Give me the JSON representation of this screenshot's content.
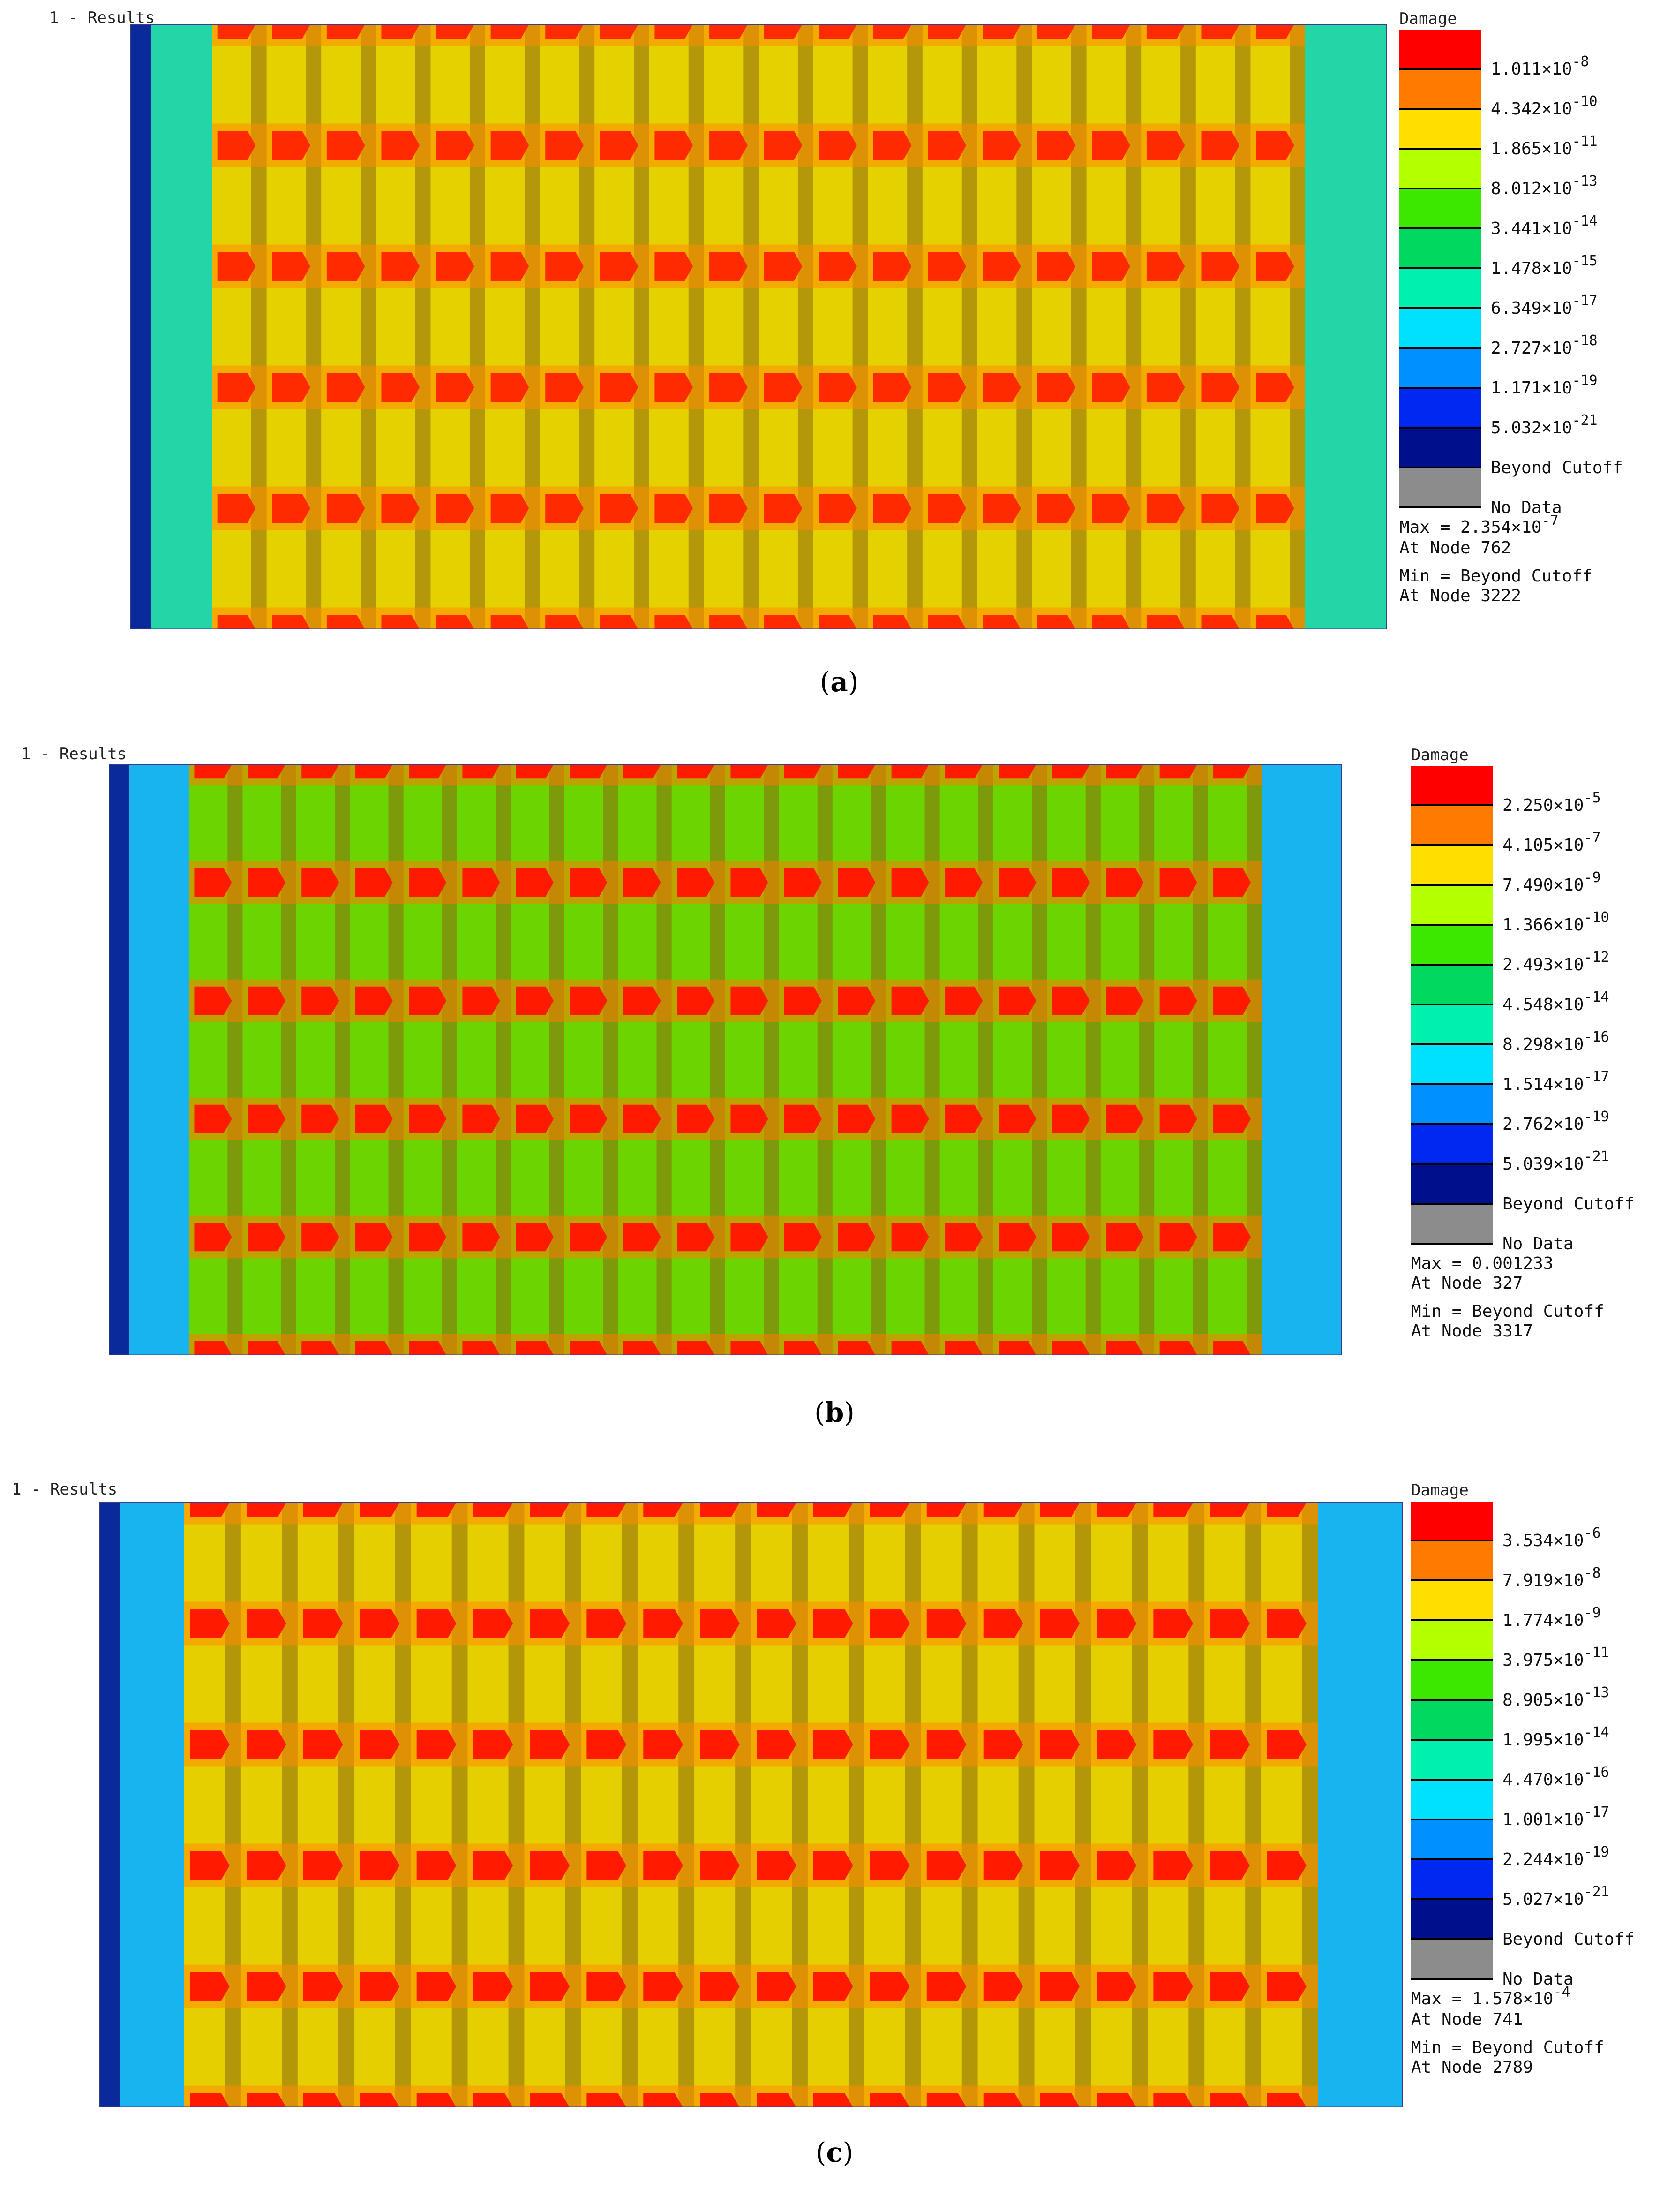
{
  "panels": [
    {
      "id": "a",
      "results_title": "1 - Results",
      "legend_title": "Damage",
      "caption_letter": "a",
      "legend": [
        {
          "color": "#ff0000",
          "label": "1.011×10",
          "exp": "-8"
        },
        {
          "color": "#ff7a00",
          "label": "4.342×10",
          "exp": "-10"
        },
        {
          "color": "#ffde00",
          "label": "1.865×10",
          "exp": "-11"
        },
        {
          "color": "#b4ff00",
          "label": "8.012×10",
          "exp": "-13"
        },
        {
          "color": "#3ce800",
          "label": "3.441×10",
          "exp": "-14"
        },
        {
          "color": "#00d860",
          "label": "1.478×10",
          "exp": "-15"
        },
        {
          "color": "#00f0b0",
          "label": "6.349×10",
          "exp": "-17"
        },
        {
          "color": "#00e0ff",
          "label": "2.727×10",
          "exp": "-18"
        },
        {
          "color": "#0090ff",
          "label": "1.171×10",
          "exp": "-19"
        },
        {
          "color": "#0028f0",
          "label": "5.032×10",
          "exp": "-21"
        },
        {
          "color": "#00108c",
          "label": "Beyond Cutoff",
          "exp": ""
        },
        {
          "color": "#8c8c8c",
          "label": "No Data",
          "exp": ""
        }
      ],
      "max_label": "Max = 2.354×10",
      "max_exp": "-7",
      "max_node": "At Node 762",
      "min_label": "Min = Beyond Cutoff",
      "min_node": "At Node 3222",
      "base_color": "#e6d100",
      "edge_color": "#22d6a8",
      "hot_color": "#ff2a00",
      "mid_color": "#ff8c00"
    },
    {
      "id": "b",
      "results_title": "1 - Results",
      "legend_title": "Damage",
      "caption_letter": "b",
      "legend": [
        {
          "color": "#ff0000",
          "label": "2.250×10",
          "exp": "-5"
        },
        {
          "color": "#ff7a00",
          "label": "4.105×10",
          "exp": "-7"
        },
        {
          "color": "#ffde00",
          "label": "7.490×10",
          "exp": "-9"
        },
        {
          "color": "#b4ff00",
          "label": "1.366×10",
          "exp": "-10"
        },
        {
          "color": "#3ce800",
          "label": "2.493×10",
          "exp": "-12"
        },
        {
          "color": "#00d860",
          "label": "4.548×10",
          "exp": "-14"
        },
        {
          "color": "#00f0b0",
          "label": "8.298×10",
          "exp": "-16"
        },
        {
          "color": "#00e0ff",
          "label": "1.514×10",
          "exp": "-17"
        },
        {
          "color": "#0090ff",
          "label": "2.762×10",
          "exp": "-19"
        },
        {
          "color": "#0028f0",
          "label": "5.039×10",
          "exp": "-21"
        },
        {
          "color": "#00108c",
          "label": "Beyond Cutoff",
          "exp": ""
        },
        {
          "color": "#8c8c8c",
          "label": "No Data",
          "exp": ""
        }
      ],
      "max_label": "Max = 0.001233",
      "max_exp": "",
      "max_node": "At Node 327",
      "min_label": "Min = Beyond Cutoff",
      "min_node": "At Node 3317",
      "base_color": "#6cd400",
      "edge_color": "#18b4f0",
      "hot_color": "#ff1a00",
      "mid_color": "#ff7a00"
    },
    {
      "id": "c",
      "results_title": "1 - Results",
      "legend_title": "Damage",
      "caption_letter": "c",
      "legend": [
        {
          "color": "#ff0000",
          "label": "3.534×10",
          "exp": "-6"
        },
        {
          "color": "#ff7a00",
          "label": "7.919×10",
          "exp": "-8"
        },
        {
          "color": "#ffde00",
          "label": "1.774×10",
          "exp": "-9"
        },
        {
          "color": "#b4ff00",
          "label": "3.975×10",
          "exp": "-11"
        },
        {
          "color": "#3ce800",
          "label": "8.905×10",
          "exp": "-13"
        },
        {
          "color": "#00d860",
          "label": "1.995×10",
          "exp": "-14"
        },
        {
          "color": "#00f0b0",
          "label": "4.470×10",
          "exp": "-16"
        },
        {
          "color": "#00e0ff",
          "label": "1.001×10",
          "exp": "-17"
        },
        {
          "color": "#0090ff",
          "label": "2.244×10",
          "exp": "-19"
        },
        {
          "color": "#0028f0",
          "label": "5.027×10",
          "exp": "-21"
        },
        {
          "color": "#00108c",
          "label": "Beyond Cutoff",
          "exp": ""
        },
        {
          "color": "#8c8c8c",
          "label": "No Data",
          "exp": ""
        }
      ],
      "max_label": "Max = 1.578×10",
      "max_exp": "-4",
      "max_node": "At Node 741",
      "min_label": "Min = Beyond Cutoff",
      "min_node": "At Node 2789",
      "base_color": "#e6cf00",
      "edge_color": "#18b4f0",
      "hot_color": "#ff1a00",
      "mid_color": "#ff8c00"
    }
  ]
}
